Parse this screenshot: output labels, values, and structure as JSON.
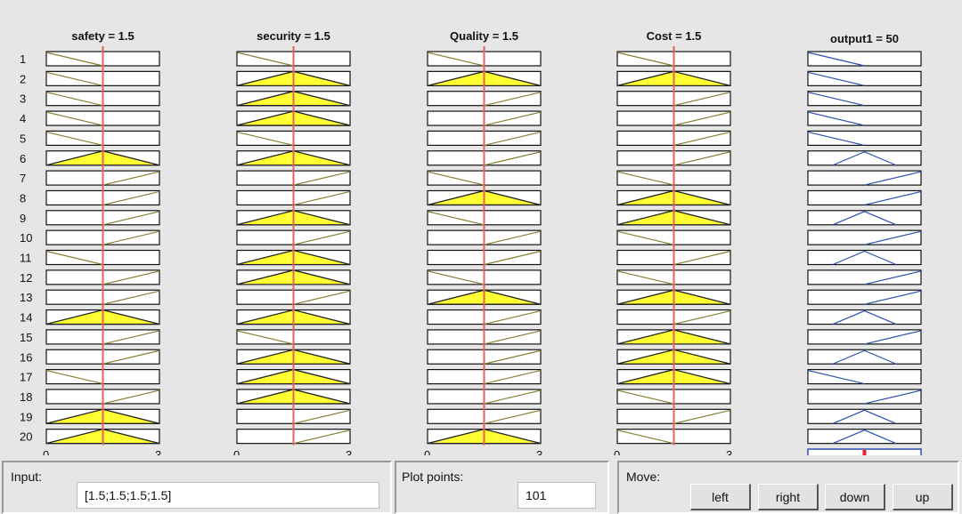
{
  "inputs": [
    {
      "name": "safety",
      "title": "safety = 1.5",
      "rows": [
        "LF",
        "L",
        "L",
        "L",
        "L",
        "TF",
        "R",
        "R",
        "R",
        "R",
        "L",
        "R",
        "R",
        "TF",
        "R",
        "R",
        "L",
        "R",
        "TF",
        "TF"
      ],
      "range_min": "0",
      "range_max": "3",
      "value": 1.5
    },
    {
      "name": "security",
      "title": "security = 1.5",
      "rows": [
        "L",
        "TF",
        "TF",
        "TF",
        "L",
        "TF",
        "R",
        "R",
        "TF",
        "R",
        "TF",
        "TF",
        "R",
        "TF",
        "L",
        "TF",
        "TF",
        "TF",
        "R",
        "R"
      ],
      "range_min": "0",
      "range_max": "3",
      "value": 1.5
    },
    {
      "name": "quality",
      "title": "Quality = 1.5",
      "rows": [
        "L",
        "TF",
        "R",
        "R",
        "R",
        "R",
        "L",
        "TF",
        "L",
        "R",
        "R",
        "L",
        "TF",
        "R",
        "R",
        "R",
        "R",
        "R",
        "R",
        "TF"
      ],
      "range_min": "0",
      "range_max": "3",
      "value": 1.5
    },
    {
      "name": "cost",
      "title": "Cost = 1.5",
      "rows": [
        "L",
        "TF",
        "R",
        "R",
        "R",
        "R",
        "L",
        "TF",
        "TF",
        "L",
        "R",
        "L",
        "TF",
        "R",
        "TF",
        "TF",
        "TF",
        "L",
        "R",
        "L"
      ],
      "range_min": "0",
      "range_max": "3",
      "value": 1.5
    }
  ],
  "output": {
    "name": "output1",
    "title": "output1 = 50",
    "rows": [
      "L",
      "L",
      "L",
      "L",
      "L",
      "T",
      "R",
      "R",
      "T",
      "R",
      "T",
      "R",
      "R",
      "T",
      "R",
      "T",
      "L",
      "R",
      "T",
      "T"
    ],
    "value_fraction": 0.5
  },
  "row_numbers": [
    "1",
    "2",
    "3",
    "4",
    "5",
    "6",
    "7",
    "8",
    "9",
    "10",
    "11",
    "12",
    "13",
    "14",
    "15",
    "16",
    "17",
    "18",
    "19",
    "20"
  ],
  "colors": {
    "input_line": "#8a7f35",
    "output_line": "#2d4fb3",
    "fill": "#ffff33",
    "indicator": "#e8605a",
    "panel_border": "#111111"
  },
  "bottom": {
    "input_label": "Input:",
    "input_value": "[1.5;1.5;1.5;1.5]",
    "plot_points_label": "Plot points:",
    "plot_points_value": "101",
    "move_label": "Move:",
    "buttons": {
      "left": "left",
      "right": "right",
      "down": "down",
      "up": "up"
    }
  }
}
